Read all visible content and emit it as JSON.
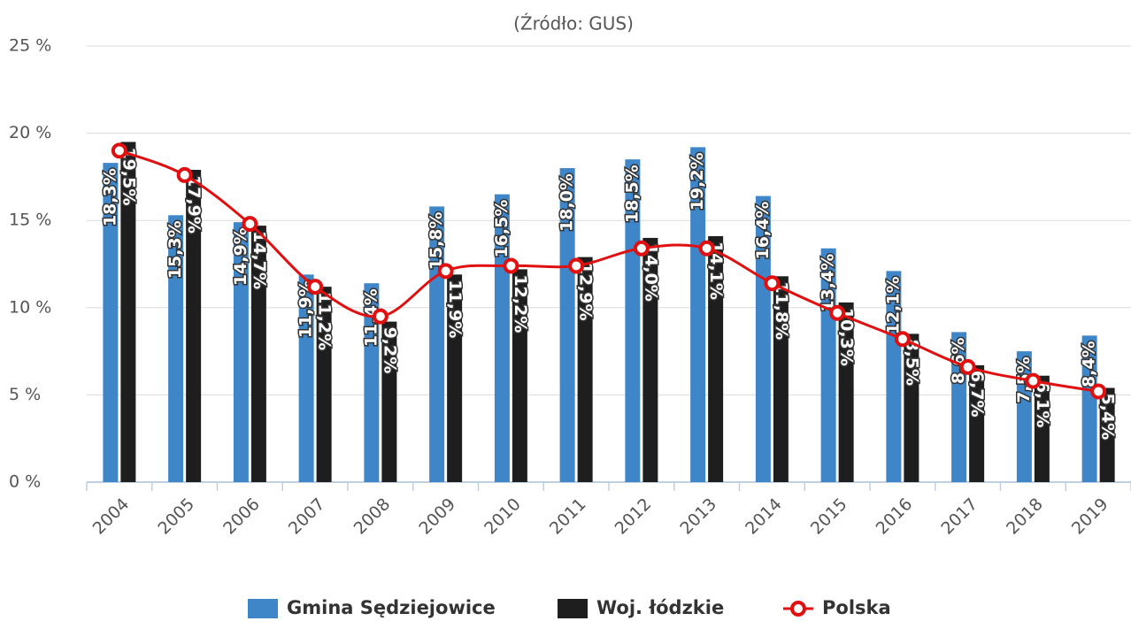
{
  "chart_data": {
    "type": "bar",
    "subtitle": "(Źródło: GUS)",
    "categories": [
      "2004",
      "2005",
      "2006",
      "2007",
      "2008",
      "2009",
      "2010",
      "2011",
      "2012",
      "2013",
      "2014",
      "2015",
      "2016",
      "2017",
      "2018",
      "2019"
    ],
    "series": [
      {
        "name": "Gmina Sędziejowice",
        "type": "bar",
        "color": "#3f86c9",
        "values": [
          18.3,
          15.3,
          14.9,
          11.9,
          11.4,
          15.8,
          16.5,
          18.0,
          18.5,
          19.2,
          16.4,
          13.4,
          12.1,
          8.6,
          7.5,
          8.4
        ],
        "value_labels": [
          "18,3%",
          "15,3%",
          "14,9%",
          "11,9%",
          "11,4%",
          "15,8%",
          "16,5%",
          "18,0%",
          "18,5%",
          "19,2%",
          "16,4%",
          "13,4%",
          "12,1%",
          "8,6%",
          "7,5%",
          "8,4%"
        ]
      },
      {
        "name": "Woj. łódzkie",
        "type": "bar",
        "color": "#1e1e1e",
        "values": [
          19.5,
          17.9,
          14.7,
          11.2,
          9.2,
          11.9,
          12.2,
          12.9,
          14.0,
          14.1,
          11.8,
          10.3,
          8.5,
          6.7,
          6.1,
          5.4
        ],
        "value_labels": [
          "19,5%",
          "17,9%",
          "14,7%",
          "11,2%",
          "9,2%",
          "11,9%",
          "12,2%",
          "12,9%",
          "14,0%",
          "14,1%",
          "11,8%",
          "10,3%",
          "8,5%",
          "6,7%",
          "6,1%",
          "5,4%"
        ]
      },
      {
        "name": "Polska",
        "type": "line",
        "color": "#e01010",
        "values": [
          19.0,
          17.6,
          14.8,
          11.2,
          9.5,
          12.1,
          12.4,
          12.4,
          13.4,
          13.4,
          11.4,
          9.7,
          8.2,
          6.6,
          5.8,
          5.2
        ]
      }
    ],
    "ylim": [
      0,
      25
    ],
    "yticks": [
      {
        "value": 0,
        "label": "0 %"
      },
      {
        "value": 5,
        "label": "5 %"
      },
      {
        "value": 10,
        "label": "10 %"
      },
      {
        "value": 15,
        "label": "15 %"
      },
      {
        "value": 20,
        "label": "20 %"
      },
      {
        "value": 25,
        "label": "25 %"
      }
    ],
    "grid": true
  }
}
